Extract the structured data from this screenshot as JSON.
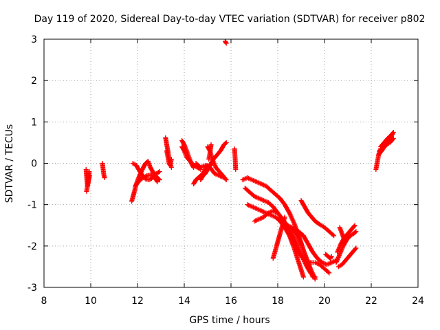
{
  "chart_data": {
    "type": "scatter",
    "title": "Day 119 of 2020, Sidereal Day-to-day VTEC variation (SDTVAR) for receiver p802",
    "xlabel": "GPS time / hours",
    "ylabel": "SDTVAR / TECUs",
    "xlim": [
      8,
      24
    ],
    "ylim": [
      -3,
      3
    ],
    "xticks": [
      "8",
      "10",
      "12",
      "14",
      "16",
      "18",
      "20",
      "22",
      "24"
    ],
    "yticks": [
      "-3",
      "-2",
      "-1",
      "0",
      "1",
      "2",
      "3"
    ],
    "grid": true,
    "marker": "plus",
    "color": "#ff0000",
    "tracks": [
      {
        "name": "t1",
        "x": [
          9.8,
          9.83,
          9.86,
          9.9,
          9.94
        ],
        "y": [
          -0.15,
          -0.35,
          -0.55,
          -0.4,
          -0.2
        ]
      },
      {
        "name": "t2",
        "x": [
          9.82,
          9.86,
          9.9,
          9.95
        ],
        "y": [
          -0.68,
          -0.55,
          -0.45,
          -0.3
        ]
      },
      {
        "name": "t3",
        "x": [
          10.5,
          10.53,
          10.56,
          10.59
        ],
        "y": [
          0.0,
          -0.15,
          -0.28,
          -0.35
        ]
      },
      {
        "name": "t4",
        "x": [
          11.75,
          11.85,
          11.95,
          12.05,
          12.15,
          12.25,
          12.35,
          12.45,
          12.55,
          12.7,
          12.85,
          12.95
        ],
        "y": [
          -0.92,
          -0.72,
          -0.5,
          -0.35,
          -0.22,
          -0.1,
          0.0,
          0.05,
          -0.1,
          -0.25,
          -0.35,
          -0.4
        ]
      },
      {
        "name": "t5",
        "x": [
          11.8,
          11.95,
          12.05,
          12.2,
          12.35,
          12.5,
          12.65,
          12.8,
          12.95
        ],
        "y": [
          0.0,
          -0.05,
          -0.15,
          -0.28,
          -0.38,
          -0.4,
          -0.35,
          -0.25,
          -0.2
        ]
      },
      {
        "name": "t6",
        "x": [
          11.9,
          12.0,
          12.1,
          12.25,
          12.4,
          12.55,
          12.7,
          12.85
        ],
        "y": [
          -0.55,
          -0.48,
          -0.4,
          -0.35,
          -0.3,
          -0.28,
          -0.3,
          -0.45
        ]
      },
      {
        "name": "t7",
        "x": [
          13.2,
          13.25,
          13.3,
          13.35,
          13.4,
          13.45
        ],
        "y": [
          0.62,
          0.45,
          0.3,
          0.1,
          0.0,
          -0.1
        ]
      },
      {
        "name": "t8",
        "x": [
          13.25,
          13.3,
          13.35,
          13.4,
          13.45
        ],
        "y": [
          0.3,
          0.15,
          0.0,
          -0.05,
          0.1
        ]
      },
      {
        "name": "t9",
        "x": [
          13.9,
          14.0,
          14.1,
          14.2,
          14.3,
          14.4
        ],
        "y": [
          0.55,
          0.45,
          0.3,
          0.15,
          0.0,
          -0.1
        ]
      },
      {
        "name": "t10",
        "x": [
          13.9,
          14.0,
          14.1,
          14.25,
          14.4,
          14.55,
          14.7
        ],
        "y": [
          0.4,
          0.3,
          0.15,
          0.05,
          -0.05,
          -0.1,
          -0.15
        ]
      },
      {
        "name": "t11",
        "x": [
          14.4,
          14.5,
          14.6,
          14.7,
          14.8,
          14.9,
          15.0
        ],
        "y": [
          -0.5,
          -0.4,
          -0.35,
          -0.3,
          -0.25,
          -0.15,
          -0.05
        ]
      },
      {
        "name": "t12",
        "x": [
          14.5,
          14.7,
          14.9,
          15.1,
          15.3,
          15.5,
          15.7
        ],
        "y": [
          0.0,
          -0.1,
          -0.05,
          -0.1,
          -0.25,
          -0.3,
          -0.35
        ]
      },
      {
        "name": "t13",
        "x": [
          14.7,
          14.8,
          14.9,
          15.0,
          15.1,
          15.2
        ],
        "y": [
          -0.4,
          -0.3,
          -0.25,
          -0.15,
          -0.05,
          0.0
        ]
      },
      {
        "name": "t14",
        "x": [
          15.0,
          15.1,
          15.2,
          15.35,
          15.5,
          15.65,
          15.8
        ],
        "y": [
          0.4,
          0.3,
          0.1,
          -0.1,
          -0.2,
          -0.3,
          -0.4
        ]
      },
      {
        "name": "t15",
        "x": [
          14.95,
          15.1,
          15.25,
          15.4,
          15.55,
          15.7,
          15.8
        ],
        "y": [
          -0.15,
          -0.05,
          0.1,
          0.2,
          0.3,
          0.45,
          0.5
        ]
      },
      {
        "name": "t16",
        "x": [
          15.05,
          15.1,
          15.15
        ],
        "y": [
          0.1,
          0.25,
          0.45
        ]
      },
      {
        "name": "t17",
        "x": [
          15.75,
          15.8
        ],
        "y": [
          2.95,
          2.9
        ]
      },
      {
        "name": "t18",
        "x": [
          16.15,
          16.18,
          16.2
        ],
        "y": [
          0.35,
          0.1,
          -0.15
        ]
      },
      {
        "name": "t19",
        "x": [
          16.5,
          16.7,
          16.9,
          17.1,
          17.3,
          17.5,
          17.7,
          17.9,
          18.1,
          18.3,
          18.5,
          18.7,
          18.9,
          19.1,
          19.3,
          19.5
        ],
        "y": [
          -0.4,
          -0.35,
          -0.4,
          -0.45,
          -0.5,
          -0.55,
          -0.65,
          -0.75,
          -0.85,
          -1.0,
          -1.2,
          -1.45,
          -1.75,
          -2.1,
          -2.45,
          -2.75
        ]
      },
      {
        "name": "t20",
        "x": [
          16.6,
          16.8,
          17.0,
          17.2,
          17.4,
          17.6,
          17.8,
          18.0,
          18.2,
          18.4,
          18.6,
          18.8,
          19.0,
          19.2,
          19.4,
          19.6
        ],
        "y": [
          -0.6,
          -0.7,
          -0.8,
          -0.85,
          -0.9,
          -0.95,
          -1.05,
          -1.2,
          -1.35,
          -1.5,
          -1.7,
          -1.95,
          -2.2,
          -2.45,
          -2.65,
          -2.75
        ]
      },
      {
        "name": "t21",
        "x": [
          16.7,
          16.9,
          17.1,
          17.3,
          17.5,
          17.7,
          17.9,
          18.1,
          18.3,
          18.5,
          18.7,
          18.9,
          19.1
        ],
        "y": [
          -1.0,
          -1.05,
          -1.1,
          -1.15,
          -1.2,
          -1.25,
          -1.3,
          -1.4,
          -1.55,
          -1.75,
          -2.05,
          -2.4,
          -2.75
        ]
      },
      {
        "name": "t22",
        "x": [
          17.0,
          17.2,
          17.4,
          17.6,
          17.8,
          18.0,
          18.2,
          18.4,
          18.6,
          18.8,
          19.0,
          19.2,
          19.4,
          19.6,
          19.8,
          20.0,
          20.2
        ],
        "y": [
          -1.4,
          -1.35,
          -1.3,
          -1.2,
          -1.15,
          -1.2,
          -1.35,
          -1.55,
          -1.8,
          -2.05,
          -2.25,
          -2.35,
          -2.4,
          -2.4,
          -2.45,
          -2.55,
          -2.65
        ]
      },
      {
        "name": "t23",
        "x": [
          17.8,
          17.9,
          18.0,
          18.1,
          18.2,
          18.3
        ],
        "y": [
          -2.3,
          -2.1,
          -1.9,
          -1.7,
          -1.5,
          -1.3
        ]
      },
      {
        "name": "t24",
        "x": [
          18.4,
          18.6,
          18.8,
          19.0,
          19.2,
          19.4,
          19.6
        ],
        "y": [
          -1.5,
          -1.55,
          -1.7,
          -1.95,
          -2.25,
          -2.55,
          -2.8
        ]
      },
      {
        "name": "t25",
        "x": [
          18.7,
          18.9,
          19.1,
          19.3,
          19.5,
          19.7,
          19.9,
          20.1,
          20.3,
          20.5
        ],
        "y": [
          -1.6,
          -1.65,
          -1.75,
          -1.95,
          -2.15,
          -2.3,
          -2.4,
          -2.45,
          -2.4,
          -2.35
        ]
      },
      {
        "name": "t26",
        "x": [
          19.0,
          19.15,
          19.3,
          19.45,
          19.6,
          19.8,
          20.0,
          20.2,
          20.4
        ],
        "y": [
          -0.9,
          -1.05,
          -1.2,
          -1.3,
          -1.4,
          -1.48,
          -1.55,
          -1.65,
          -1.75
        ]
      },
      {
        "name": "t27",
        "x": [
          20.05,
          20.15,
          20.25,
          20.3
        ],
        "y": [
          -2.2,
          -2.25,
          -2.3,
          -2.25
        ]
      },
      {
        "name": "t28",
        "x": [
          20.55,
          20.7,
          20.85,
          21.0,
          21.15,
          21.3
        ],
        "y": [
          -2.15,
          -1.95,
          -1.8,
          -1.7,
          -1.6,
          -1.5
        ]
      },
      {
        "name": "t29",
        "x": [
          20.5,
          20.65,
          20.8,
          20.95,
          21.1,
          21.25,
          21.35
        ],
        "y": [
          -2.4,
          -2.2,
          -2.0,
          -1.85,
          -1.75,
          -1.7,
          -1.65
        ]
      },
      {
        "name": "t30",
        "x": [
          20.6,
          20.75,
          20.9,
          21.05,
          21.2,
          21.35
        ],
        "y": [
          -2.5,
          -2.45,
          -2.35,
          -2.25,
          -2.15,
          -2.05
        ]
      },
      {
        "name": "t31",
        "x": [
          20.65,
          20.75,
          20.85
        ],
        "y": [
          -1.55,
          -1.7,
          -1.85
        ]
      },
      {
        "name": "t32",
        "x": [
          22.2,
          22.25,
          22.3,
          22.35,
          22.4
        ],
        "y": [
          -0.15,
          0.0,
          0.15,
          0.28,
          0.35
        ]
      },
      {
        "name": "t33",
        "x": [
          22.3,
          22.45,
          22.6,
          22.75,
          22.9
        ],
        "y": [
          0.2,
          0.3,
          0.45,
          0.55,
          0.7
        ]
      },
      {
        "name": "t34",
        "x": [
          22.35,
          22.5,
          22.65,
          22.8,
          22.95
        ],
        "y": [
          0.3,
          0.35,
          0.45,
          0.5,
          0.6
        ]
      },
      {
        "name": "t35",
        "x": [
          22.4,
          22.55,
          22.7,
          22.85,
          22.95
        ],
        "y": [
          0.4,
          0.5,
          0.6,
          0.68,
          0.75
        ]
      }
    ]
  }
}
